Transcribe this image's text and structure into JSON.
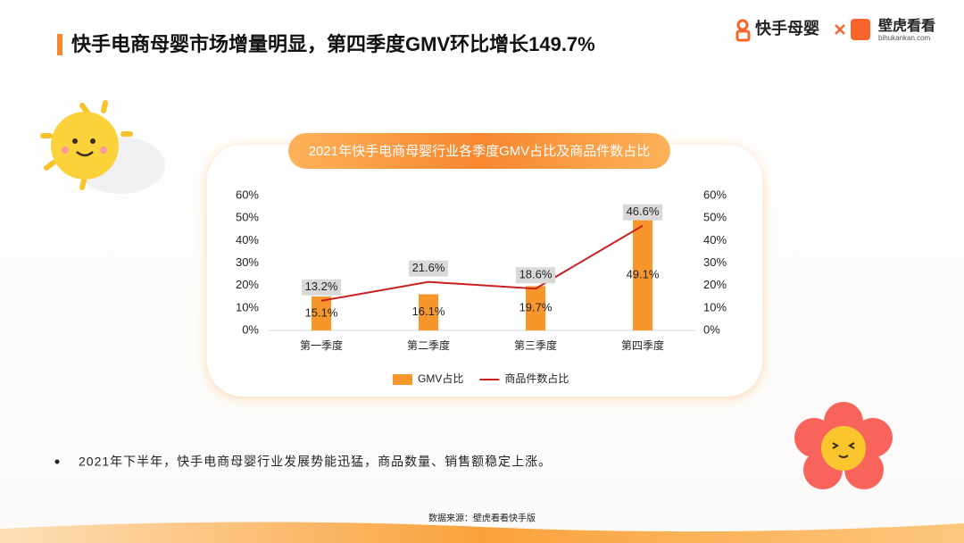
{
  "header": {
    "title": "快手电商母婴市场增量明显，第四季度GMV环比增长149.7%",
    "brand": "快手母婴",
    "partner": "壁虎看看",
    "partner_url": "bihukankan.com"
  },
  "chart_data": {
    "type": "bar",
    "title": "2021年快手电商母婴行业各季度GMV占比及商品件数占比",
    "categories": [
      "第一季度",
      "第二季度",
      "第三季度",
      "第四季度"
    ],
    "series": [
      {
        "name": "GMV占比",
        "type": "bar",
        "color": "#f7962a",
        "values": [
          15.1,
          16.1,
          19.7,
          49.1
        ],
        "value_labels": [
          "15.1%",
          "16.1%",
          "19.7%",
          "49.1%"
        ]
      },
      {
        "name": "商品件数占比",
        "type": "line",
        "axis": "y2",
        "color": "#c8201e",
        "values": [
          13.2,
          21.6,
          18.6,
          46.6
        ],
        "value_labels": [
          "13.2%",
          "21.6%",
          "18.6%",
          "46.6%"
        ]
      }
    ],
    "ylim": [
      0,
      60
    ],
    "yticks": [
      {
        "value": 0,
        "label": "0%"
      },
      {
        "value": 10,
        "label": "10%"
      },
      {
        "value": 20,
        "label": "20%"
      },
      {
        "value": 30,
        "label": "30%"
      },
      {
        "value": 40,
        "label": "40%"
      },
      {
        "value": 50,
        "label": "50%"
      },
      {
        "value": 60,
        "label": "60%"
      }
    ],
    "y2lim": [
      0,
      60
    ],
    "y2ticks": [
      {
        "value": 0,
        "label": "0%"
      },
      {
        "value": 10,
        "label": "10%"
      },
      {
        "value": 20,
        "label": "20%"
      },
      {
        "value": 30,
        "label": "30%"
      },
      {
        "value": 40,
        "label": "40%"
      },
      {
        "value": 50,
        "label": "50%"
      },
      {
        "value": 60,
        "label": "60%"
      }
    ],
    "grid": false,
    "legend": "bottom"
  },
  "bullet": "2021年下半年，快手电商母婴行业发展势能迅猛，商品数量、销售额稳定上涨。",
  "source": "数据来源：壁虎看看快手版"
}
